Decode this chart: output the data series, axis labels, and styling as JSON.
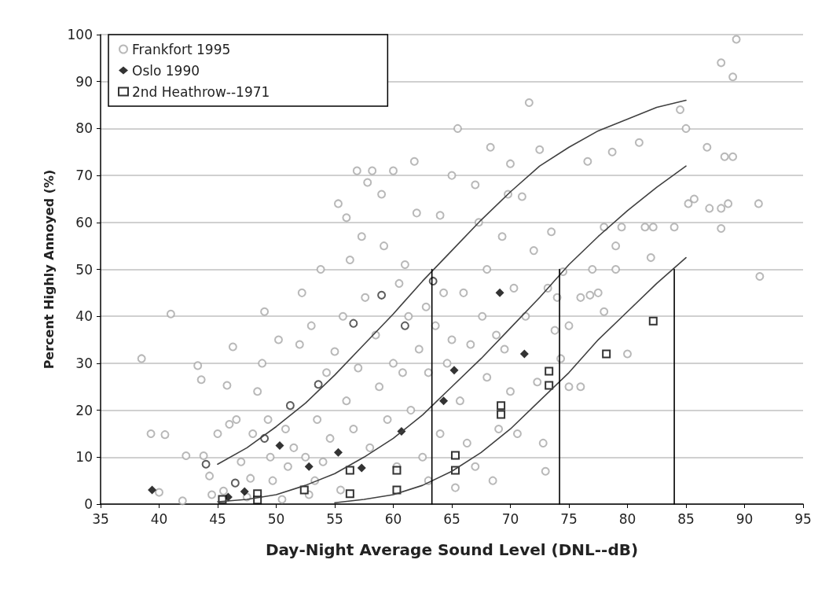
{
  "chart_data": {
    "type": "scatter",
    "xlabel": "Day-Night Average Sound Level (DNL--dB)",
    "ylabel": "Percent Highly Annoyed (%)",
    "xlim": [
      35,
      95
    ],
    "xticks": [
      35,
      40,
      45,
      50,
      55,
      60,
      65,
      70,
      75,
      80,
      85,
      90,
      95
    ],
    "ylim": [
      0,
      100
    ],
    "yticks": [
      0,
      10,
      20,
      30,
      40,
      50,
      60,
      70,
      80,
      90,
      100
    ],
    "grid": "y",
    "legend": "top left",
    "series": [
      {
        "name": "Frankfort 1995",
        "marker": "circle",
        "color": "#a6a6a6",
        "x": [
          38.5,
          39.3,
          40.5,
          40,
          41,
          42,
          42.3,
          43.3,
          43.6,
          43.8,
          44.3,
          44.5,
          45,
          45.5,
          45.8,
          46,
          46.3,
          46.6,
          47,
          47.5,
          47.8,
          48,
          48.4,
          48.8,
          49,
          49.3,
          49.5,
          49.7,
          50.2,
          50.5,
          50.8,
          51,
          51.5,
          52,
          52.2,
          52.5,
          52.8,
          53,
          53.3,
          53.5,
          53.8,
          54,
          54.3,
          54.6,
          55,
          55.3,
          55.5,
          55.7,
          56,
          56,
          56.3,
          56.6,
          56.9,
          57,
          57.3,
          57.6,
          57.8,
          58,
          58.2,
          58.5,
          58.8,
          59,
          59.2,
          59.5,
          60,
          60,
          60.3,
          60.5,
          60.8,
          61,
          61.3,
          61.5,
          61.8,
          62,
          62.2,
          62.5,
          62.8,
          63,
          63,
          63.6,
          64,
          64,
          64.3,
          64.6,
          65,
          65,
          65.3,
          65.5,
          65.7,
          66,
          66.3,
          66.6,
          67,
          67,
          67.3,
          67.6,
          68,
          68,
          68.3,
          68.5,
          68.8,
          69,
          69.3,
          69.5,
          69.8,
          70,
          70,
          70.3,
          70.6,
          71,
          71.3,
          71.6,
          72,
          72.3,
          72.5,
          72.8,
          73,
          73.2,
          73.5,
          73.8,
          74,
          74.3,
          74.5,
          75,
          75,
          76,
          76,
          76.6,
          76.8,
          77,
          77.5,
          78,
          78,
          78.7,
          79,
          79,
          79.5,
          80,
          81,
          81.5,
          82,
          82.2,
          84,
          84.5,
          85,
          85.2,
          85.7,
          86.8,
          87,
          88,
          88,
          88,
          88.3,
          88.6,
          89,
          89,
          89.3,
          91.2,
          91.3
        ],
        "values": [
          31,
          15,
          14.8,
          2.5,
          40.5,
          0.7,
          10.3,
          29.5,
          26.5,
          10.3,
          6,
          2,
          15,
          2.8,
          25.3,
          17,
          33.5,
          18,
          9,
          1.5,
          5.5,
          15,
          24,
          30,
          41,
          18,
          10,
          5,
          35,
          1,
          16,
          8,
          12,
          34,
          45,
          10,
          2,
          38,
          5,
          18,
          50,
          9,
          28,
          14,
          32.5,
          64,
          3,
          40,
          61,
          22,
          52,
          16,
          71,
          29,
          57,
          44,
          68.5,
          12,
          71,
          36,
          25,
          66,
          55,
          18,
          71,
          30,
          8,
          47,
          28,
          51,
          40,
          20,
          73,
          62,
          33,
          10,
          42,
          28,
          5,
          38,
          61.5,
          15,
          45,
          30,
          70,
          35,
          3.5,
          80,
          22,
          45,
          13,
          34,
          68,
          8,
          60,
          40,
          50,
          27,
          76,
          5,
          36,
          16,
          57,
          33,
          66,
          72.5,
          24,
          46,
          15,
          65.5,
          40,
          85.5,
          54,
          26,
          75.5,
          13,
          7,
          46,
          58,
          37,
          44,
          31,
          49.5,
          38,
          25,
          25,
          44,
          73,
          44.5,
          50,
          45,
          59,
          41,
          75,
          50,
          55,
          59,
          32,
          77,
          59,
          52.5,
          59,
          59,
          84,
          80,
          64,
          65,
          76,
          63,
          58.7,
          94,
          63,
          74,
          64,
          91,
          74,
          99,
          64,
          48.5
        ]
      },
      {
        "name": "Oslo 1990",
        "marker": "diamond",
        "color": "#000000",
        "x": [
          39.4,
          45.9,
          47.3,
          50.3,
          52.8,
          55.3,
          57.3,
          60.7,
          64.3,
          65.2,
          69.1,
          71.2
        ],
        "values": [
          3,
          1.5,
          2.7,
          12.5,
          8,
          11,
          7.7,
          15.5,
          22,
          28.5,
          45,
          32
        ]
      },
      {
        "name": "2nd Heathrow--1971",
        "marker": "square",
        "color": "#000000",
        "x": [
          45.4,
          48.4,
          48.4,
          52.4,
          56.3,
          56.3,
          60.3,
          60.3,
          65.3,
          65.3,
          69.2,
          69.2,
          73.3,
          73.3,
          78.2,
          82.2
        ],
        "values": [
          1,
          2.2,
          0.9,
          3,
          7.2,
          2.2,
          7.2,
          3,
          10.4,
          7.2,
          21,
          19.1,
          28.3,
          25.3,
          32,
          39
        ]
      },
      {
        "marker": "circle",
        "color": "#333333",
        "x": [
          44,
          46.5,
          49,
          51.2,
          53.6,
          56.6,
          59,
          61,
          63.4
        ],
        "values": [
          8.5,
          4.5,
          14,
          21,
          25.5,
          38.5,
          44.5,
          38,
          47.5
        ]
      },
      {
        "type": "line",
        "marker": "none",
        "color": "#404040",
        "x": [
          45,
          47.5,
          50,
          52.5,
          55,
          57.5,
          60,
          62.5,
          65,
          67.5,
          70,
          72.5,
          75,
          77.5,
          80,
          82.5,
          85
        ],
        "values": [
          8.5,
          12,
          16.5,
          21.5,
          27.5,
          34,
          40.5,
          47.5,
          54,
          60.5,
          66.5,
          72,
          76,
          79.5,
          82,
          84.5,
          86
        ]
      },
      {
        "type": "line",
        "marker": "none",
        "color": "#404040",
        "x": [
          45,
          47.5,
          50,
          52.5,
          55,
          57.5,
          60,
          62.5,
          65,
          67.5,
          70,
          72.5,
          75,
          77.5,
          80,
          82.5,
          85
        ],
        "values": [
          0.5,
          1,
          2,
          4,
          6.5,
          10,
          14,
          19,
          25,
          31,
          37.5,
          44,
          51,
          57,
          62.5,
          67.5,
          72
        ]
      },
      {
        "type": "line",
        "marker": "none",
        "color": "#404040",
        "x": [
          55,
          57.5,
          60,
          62.5,
          65,
          67.5,
          70,
          72.5,
          75,
          77.5,
          80,
          82.5,
          85
        ],
        "values": [
          0.3,
          1,
          2,
          4,
          7,
          11,
          16,
          22,
          28,
          35,
          41,
          47,
          52.5
        ]
      },
      {
        "type": "line",
        "marker": "none",
        "color": "#000000",
        "x": [
          63.3,
          63.3
        ],
        "values": [
          0,
          50
        ]
      },
      {
        "type": "line",
        "marker": "none",
        "color": "#000000",
        "x": [
          74.2,
          74.2
        ],
        "values": [
          0,
          50
        ]
      },
      {
        "type": "line",
        "marker": "none",
        "color": "#000000",
        "x": [
          84,
          84
        ],
        "values": [
          0,
          50
        ]
      }
    ]
  }
}
